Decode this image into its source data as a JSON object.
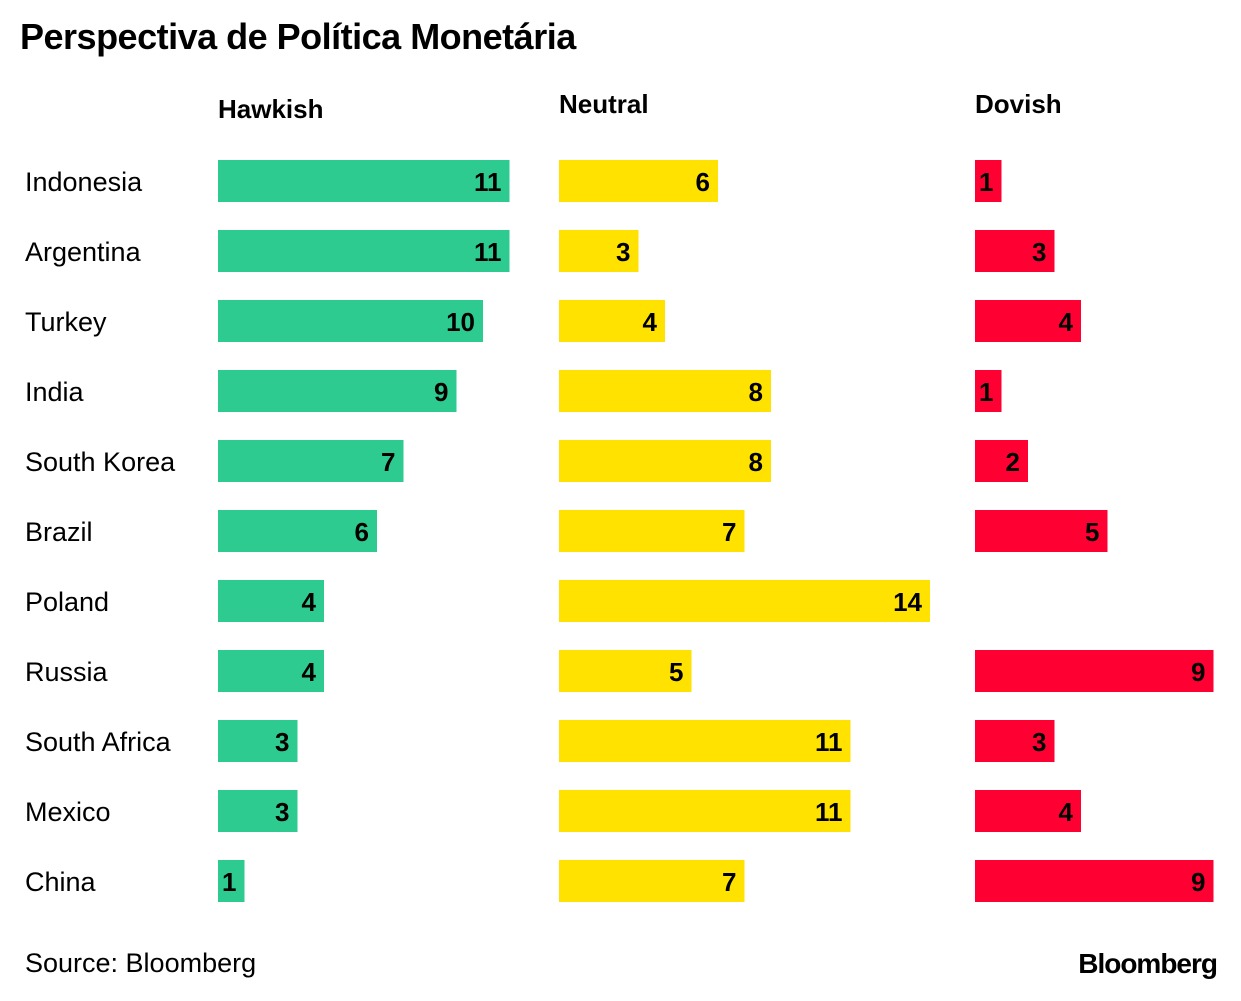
{
  "title": "Perspectiva de Política Monetária",
  "source": "Source: Bloomberg",
  "brand": "Bloomberg",
  "chart_data": {
    "type": "bar",
    "orientation": "horizontal",
    "layout": "small-multiples",
    "categories": [
      "Indonesia",
      "Argentina",
      "Turkey",
      "India",
      "South Korea",
      "Brazil",
      "Poland",
      "Russia",
      "South Africa",
      "Mexico",
      "China"
    ],
    "series": [
      {
        "name": "Hawkish",
        "color": "#2ecb91",
        "values": [
          11,
          11,
          10,
          9,
          7,
          6,
          4,
          4,
          3,
          3,
          1
        ]
      },
      {
        "name": "Neutral",
        "color": "#ffe200",
        "values": [
          6,
          3,
          4,
          8,
          8,
          7,
          14,
          5,
          11,
          11,
          7
        ]
      },
      {
        "name": "Dovish",
        "color": "#ff0033",
        "values": [
          1,
          3,
          4,
          1,
          2,
          5,
          0,
          9,
          3,
          4,
          9
        ]
      }
    ],
    "data_labels": true,
    "grid": false,
    "legend": "none"
  }
}
